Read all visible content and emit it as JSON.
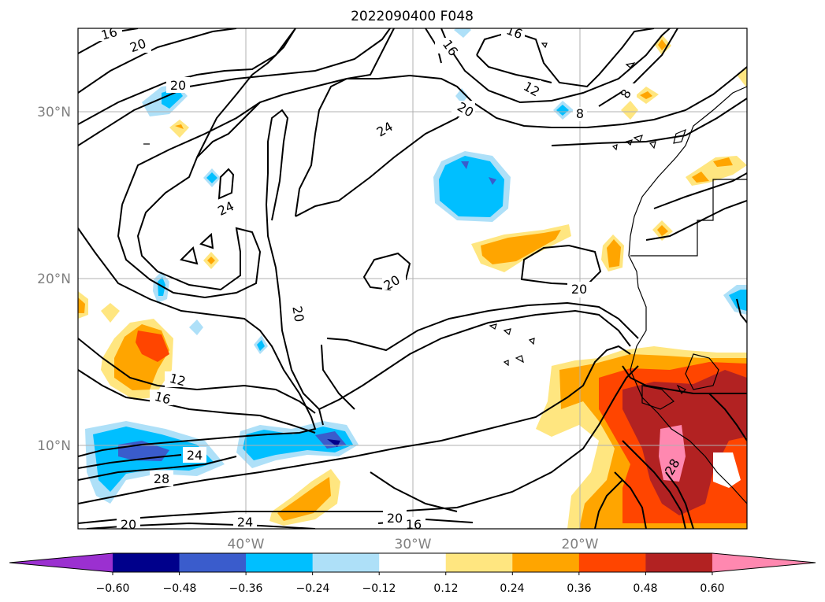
{
  "title": "2022090400 F048",
  "axes": {
    "lat_labels": [
      "30°N",
      "20°N",
      "10°N"
    ],
    "lon_labels": [
      "40°W",
      "30°W",
      "20°W"
    ]
  },
  "colorbar": {
    "ticks": [
      "−0.60",
      "−0.48",
      "−0.36",
      "−0.24",
      "−0.12",
      "0.12",
      "0.24",
      "0.36",
      "0.48",
      "0.60"
    ],
    "colors": [
      "#9b30d0",
      "#00008b",
      "#3a5ccc",
      "#00bfff",
      "#aee0f8",
      "#ffffff",
      "#ffe680",
      "#ffa500",
      "#ff4500",
      "#b22222",
      "#ff88b0"
    ]
  },
  "contour_labels": [
    {
      "id": "c1",
      "text": "16"
    },
    {
      "id": "c2",
      "text": "20"
    },
    {
      "id": "c3",
      "text": "20"
    },
    {
      "id": "c4",
      "text": "16"
    },
    {
      "id": "c5",
      "text": "16"
    },
    {
      "id": "c6",
      "text": "12"
    },
    {
      "id": "c7",
      "text": "8"
    },
    {
      "id": "c8",
      "text": "8"
    },
    {
      "id": "c9",
      "text": "20"
    },
    {
      "id": "c10",
      "text": "24"
    },
    {
      "id": "c11",
      "text": "24"
    },
    {
      "id": "c12",
      "text": "20"
    },
    {
      "id": "c13",
      "text": "20"
    },
    {
      "id": "c14",
      "text": "20"
    },
    {
      "id": "c15",
      "text": "12"
    },
    {
      "id": "c16",
      "text": "16"
    },
    {
      "id": "c17",
      "text": "24"
    },
    {
      "id": "c18",
      "text": "28"
    },
    {
      "id": "c19",
      "text": "20"
    },
    {
      "id": "c20",
      "text": "24"
    },
    {
      "id": "c21",
      "text": "20"
    },
    {
      "id": "c22",
      "text": "16"
    },
    {
      "id": "c23",
      "text": "28"
    }
  ]
}
